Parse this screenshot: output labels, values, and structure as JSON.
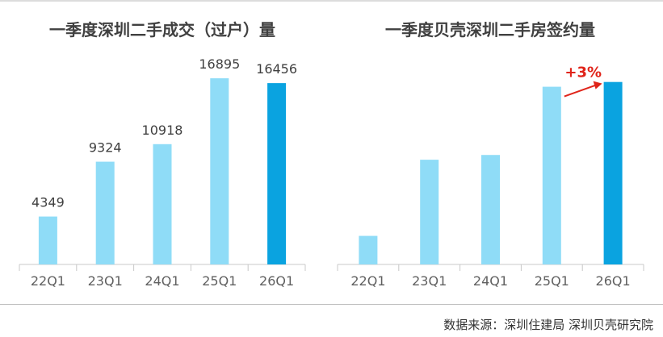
{
  "colors": {
    "bar_light": "#8fdcf7",
    "bar_highlight": "#0aa3e0",
    "axis": "#c8c8c8",
    "annotation": "#e0241a"
  },
  "source": "数据来源：深圳住建局 深圳贝壳研究院",
  "chart_data": [
    {
      "type": "bar",
      "title": "一季度深圳二手成交（过户）量",
      "categories": [
        "22Q1",
        "23Q1",
        "24Q1",
        "25Q1",
        "26Q1"
      ],
      "values": [
        4349,
        9324,
        10918,
        16895,
        16456
      ],
      "data_labels": [
        "4349",
        "9324",
        "10918",
        "16895",
        "16456"
      ],
      "highlight_index": 4,
      "ylim": [
        0,
        18000
      ],
      "grid": false,
      "legend": "none"
    },
    {
      "type": "bar",
      "title": "一季度贝壳深圳二手房签约量",
      "categories": [
        "22Q1",
        "23Q1",
        "24Q1",
        "25Q1",
        "26Q1"
      ],
      "values": [
        36,
        132,
        138,
        224,
        230
      ],
      "highlight_index": 4,
      "ylim": [
        0,
        250
      ],
      "grid": false,
      "legend": "none",
      "annotation": {
        "text": "+3%",
        "from_index": 3,
        "to_index": 4
      }
    }
  ]
}
